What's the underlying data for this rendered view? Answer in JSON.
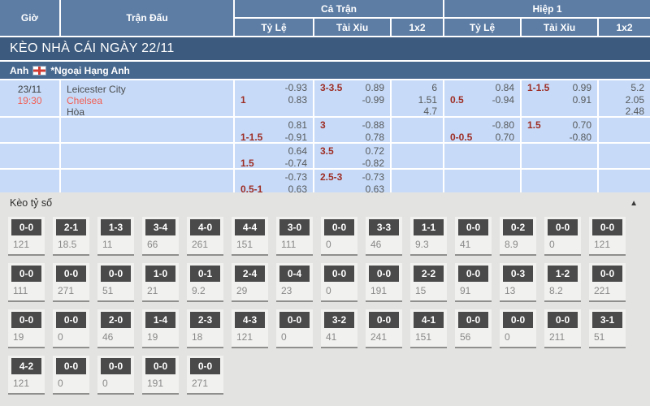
{
  "header": {
    "time": "Giờ",
    "match": "Trận Đấu",
    "full_time": "Cả Trận",
    "first_half": "Hiệp 1",
    "sub": [
      "Tỷ Lệ",
      "Tài Xỉu",
      "1x2",
      "Tỷ Lệ",
      "Tài Xỉu",
      "1x2"
    ]
  },
  "banner": "KÈO NHÀ CÁI NGÀY 22/11",
  "league": {
    "country": "Anh",
    "flag_icon": "england-flag",
    "name": "*Ngoại Hạng Anh"
  },
  "match": {
    "date": "23/11",
    "time": "19:30",
    "home": "Leicester City",
    "away": "Chelsea",
    "draw": "Hòa"
  },
  "odds_rows": [
    {
      "ft_hdp": {
        "hc": "1",
        "v1": "-0.93",
        "v2": "0.83"
      },
      "ft_ou": {
        "hc": "3-3.5",
        "v1": "0.89",
        "v2": "-0.99"
      },
      "ft_1x2": [
        "6",
        "1.51",
        "4.7"
      ],
      "fh_hdp": {
        "hc": "0.5",
        "v1": "0.84",
        "v2": "-0.94"
      },
      "fh_ou": {
        "hc": "1-1.5",
        "v1": "0.99",
        "v2": "0.91"
      },
      "fh_1x2": [
        "5.2",
        "2.05",
        "2.48"
      ]
    },
    {
      "ft_hdp": {
        "hc": "1-1.5",
        "v1": "0.81",
        "v2": "-0.91"
      },
      "ft_ou": {
        "hc": "3",
        "v1": "-0.88",
        "v2": "0.78"
      },
      "ft_1x2": [],
      "fh_hdp": {
        "hc": "0-0.5",
        "v1": "-0.80",
        "v2": "0.70"
      },
      "fh_ou": {
        "hc": "1.5",
        "v1": "0.70",
        "v2": "-0.80"
      },
      "fh_1x2": []
    },
    {
      "ft_hdp": {
        "hc": "1.5",
        "v1": "0.64",
        "v2": "-0.74"
      },
      "ft_ou": {
        "hc": "3.5",
        "v1": "0.72",
        "v2": "-0.82"
      },
      "ft_1x2": [],
      "fh_hdp": null,
      "fh_ou": null,
      "fh_1x2": []
    },
    {
      "ft_hdp": {
        "hc": "0.5-1",
        "v1": "-0.73",
        "v2": "0.63"
      },
      "ft_ou": {
        "hc": "2.5-3",
        "v1": "-0.73",
        "v2": "0.63"
      },
      "ft_1x2": [],
      "fh_hdp": null,
      "fh_ou": null,
      "fh_1x2": []
    }
  ],
  "score_section": {
    "title": "Kèo tỷ số",
    "collapse_icon": "▲",
    "rows": [
      [
        {
          "score": "0-0",
          "odds": "121"
        },
        {
          "score": "2-1",
          "odds": "18.5"
        },
        {
          "score": "1-3",
          "odds": "11"
        },
        {
          "score": "3-4",
          "odds": "66"
        },
        {
          "score": "4-0",
          "odds": "261"
        },
        {
          "score": "4-4",
          "odds": "151"
        },
        {
          "score": "3-0",
          "odds": "111"
        },
        {
          "score": "0-0",
          "odds": "0"
        },
        {
          "score": "3-3",
          "odds": "46"
        },
        {
          "score": "1-1",
          "odds": "9.3"
        },
        {
          "score": "0-0",
          "odds": "41"
        },
        {
          "score": "0-2",
          "odds": "8.9"
        },
        {
          "score": "0-0",
          "odds": "0"
        },
        {
          "score": "0-0",
          "odds": "121"
        }
      ],
      [
        {
          "score": "0-0",
          "odds": "111"
        },
        {
          "score": "0-0",
          "odds": "271"
        },
        {
          "score": "0-0",
          "odds": "51"
        },
        {
          "score": "1-0",
          "odds": "21"
        },
        {
          "score": "0-1",
          "odds": "9.2"
        },
        {
          "score": "2-4",
          "odds": "29"
        },
        {
          "score": "0-4",
          "odds": "23"
        },
        {
          "score": "0-0",
          "odds": "0"
        },
        {
          "score": "0-0",
          "odds": "191"
        },
        {
          "score": "2-2",
          "odds": "15"
        },
        {
          "score": "0-0",
          "odds": "91"
        },
        {
          "score": "0-3",
          "odds": "13"
        },
        {
          "score": "1-2",
          "odds": "8.2"
        },
        {
          "score": "0-0",
          "odds": "221"
        }
      ],
      [
        {
          "score": "0-0",
          "odds": "19"
        },
        {
          "score": "0-0",
          "odds": "0"
        },
        {
          "score": "2-0",
          "odds": "46"
        },
        {
          "score": "1-4",
          "odds": "19"
        },
        {
          "score": "2-3",
          "odds": "18"
        },
        {
          "score": "4-3",
          "odds": "121"
        },
        {
          "score": "0-0",
          "odds": "0"
        },
        {
          "score": "3-2",
          "odds": "41"
        },
        {
          "score": "0-0",
          "odds": "241"
        },
        {
          "score": "4-1",
          "odds": "151"
        },
        {
          "score": "0-0",
          "odds": "56"
        },
        {
          "score": "0-0",
          "odds": "0"
        },
        {
          "score": "0-0",
          "odds": "211"
        },
        {
          "score": "3-1",
          "odds": "51"
        }
      ],
      [
        {
          "score": "4-2",
          "odds": "121"
        },
        {
          "score": "0-0",
          "odds": "0"
        },
        {
          "score": "0-0",
          "odds": "0"
        },
        {
          "score": "0-0",
          "odds": "191"
        },
        {
          "score": "0-0",
          "odds": "271"
        }
      ]
    ]
  },
  "colors": {
    "header_blue": "#5d7da5",
    "banner_navy": "#3c5a7d",
    "league_blue": "#47688e",
    "row_light_blue": "#c7dbf8",
    "handicap_red": "#9e2d24",
    "team_red": "#f25c52",
    "score_box_dark": "#4a4a4a",
    "section_gray": "#e3e3e1"
  }
}
